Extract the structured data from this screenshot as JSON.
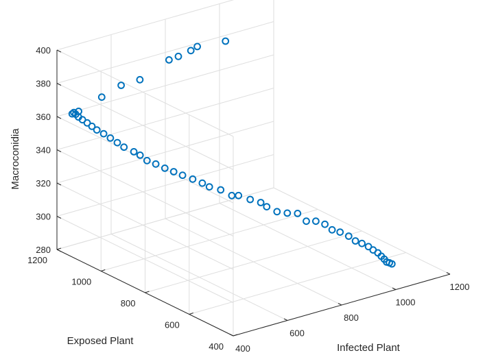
{
  "chart_data": {
    "type": "scatter",
    "title": "",
    "xlabel": "Infected Plant",
    "ylabel": "Exposed Plant",
    "zlabel": "Macroconidia",
    "xlim": [
      400,
      1200
    ],
    "ylim": [
      400,
      1200
    ],
    "zlim": [
      280,
      400
    ],
    "xticks": [
      400,
      600,
      800,
      1000,
      1200
    ],
    "yticks": [
      400,
      600,
      800,
      1000,
      1200
    ],
    "zticks": [
      280,
      300,
      320,
      340,
      360,
      380,
      400
    ],
    "grid": true,
    "marker": "open-circle",
    "color": "#0072BD",
    "series": [
      {
        "points": [
          [
            454,
            1168,
            362.7
          ],
          [
            431,
            1169,
            362.2
          ],
          [
            428,
            1158,
            363.8
          ],
          [
            427,
            1148,
            363.5
          ],
          [
            429,
            1138,
            362.4
          ],
          [
            434,
            1126,
            361.3
          ],
          [
            441,
            1113,
            359.9
          ],
          [
            447,
            1099,
            358.5
          ],
          [
            453,
            1084,
            357.0
          ],
          [
            465,
            1068,
            355.2
          ],
          [
            476,
            1051,
            353.2
          ],
          [
            487,
            1033,
            351.1
          ],
          [
            497,
            1015,
            349.1
          ],
          [
            517,
            995,
            346.7
          ],
          [
            523,
            974,
            345.7
          ],
          [
            534,
            956,
            343.1
          ],
          [
            551,
            937,
            341.5
          ],
          [
            569,
            918,
            339.4
          ],
          [
            587,
            900,
            337.6
          ],
          [
            604,
            881,
            335.9
          ],
          [
            627,
            863,
            333.7
          ],
          [
            647,
            844,
            331.6
          ],
          [
            660,
            828,
            329.8
          ],
          [
            687,
            810,
            327.9
          ],
          [
            711,
            789,
            324.7
          ],
          [
            726,
            777,
            324.8
          ],
          [
            753,
            757,
            322.5
          ],
          [
            778,
            740,
            320.6
          ],
          [
            787,
            724,
            318.7
          ],
          [
            812,
            708,
            315.6
          ],
          [
            837,
            692,
            314.6
          ],
          [
            862,
            676,
            314.3
          ],
          [
            881,
            660,
            309.8
          ],
          [
            905,
            646,
            309.6
          ],
          [
            927,
            632,
            307.6
          ],
          [
            942,
            618,
            304.5
          ],
          [
            961,
            605,
            303.1
          ],
          [
            983,
            593,
            300.4
          ],
          [
            999,
            582,
            297.5
          ],
          [
            1014,
            571,
            296.0
          ],
          [
            1030,
            561,
            294.0
          ],
          [
            1039,
            551,
            292.2
          ],
          [
            1050,
            543,
            290.5
          ],
          [
            1057,
            536,
            288.6
          ],
          [
            1063,
            530,
            287.0
          ],
          [
            1067,
            524,
            285.4
          ],
          [
            1073,
            519,
            285.0
          ],
          [
            1080,
            516,
            284.2
          ],
          [
            532,
            1159,
            368.2
          ],
          [
            593,
            1146,
            373.3
          ],
          [
            663,
            1147,
            373.4
          ],
          [
            773,
            1150,
            380.0
          ],
          [
            809,
            1152,
            380.3
          ],
          [
            847,
            1142,
            382.7
          ],
          [
            879,
            1152,
            383.0
          ],
          [
            966,
            1131,
            383.6
          ]
        ]
      }
    ]
  }
}
